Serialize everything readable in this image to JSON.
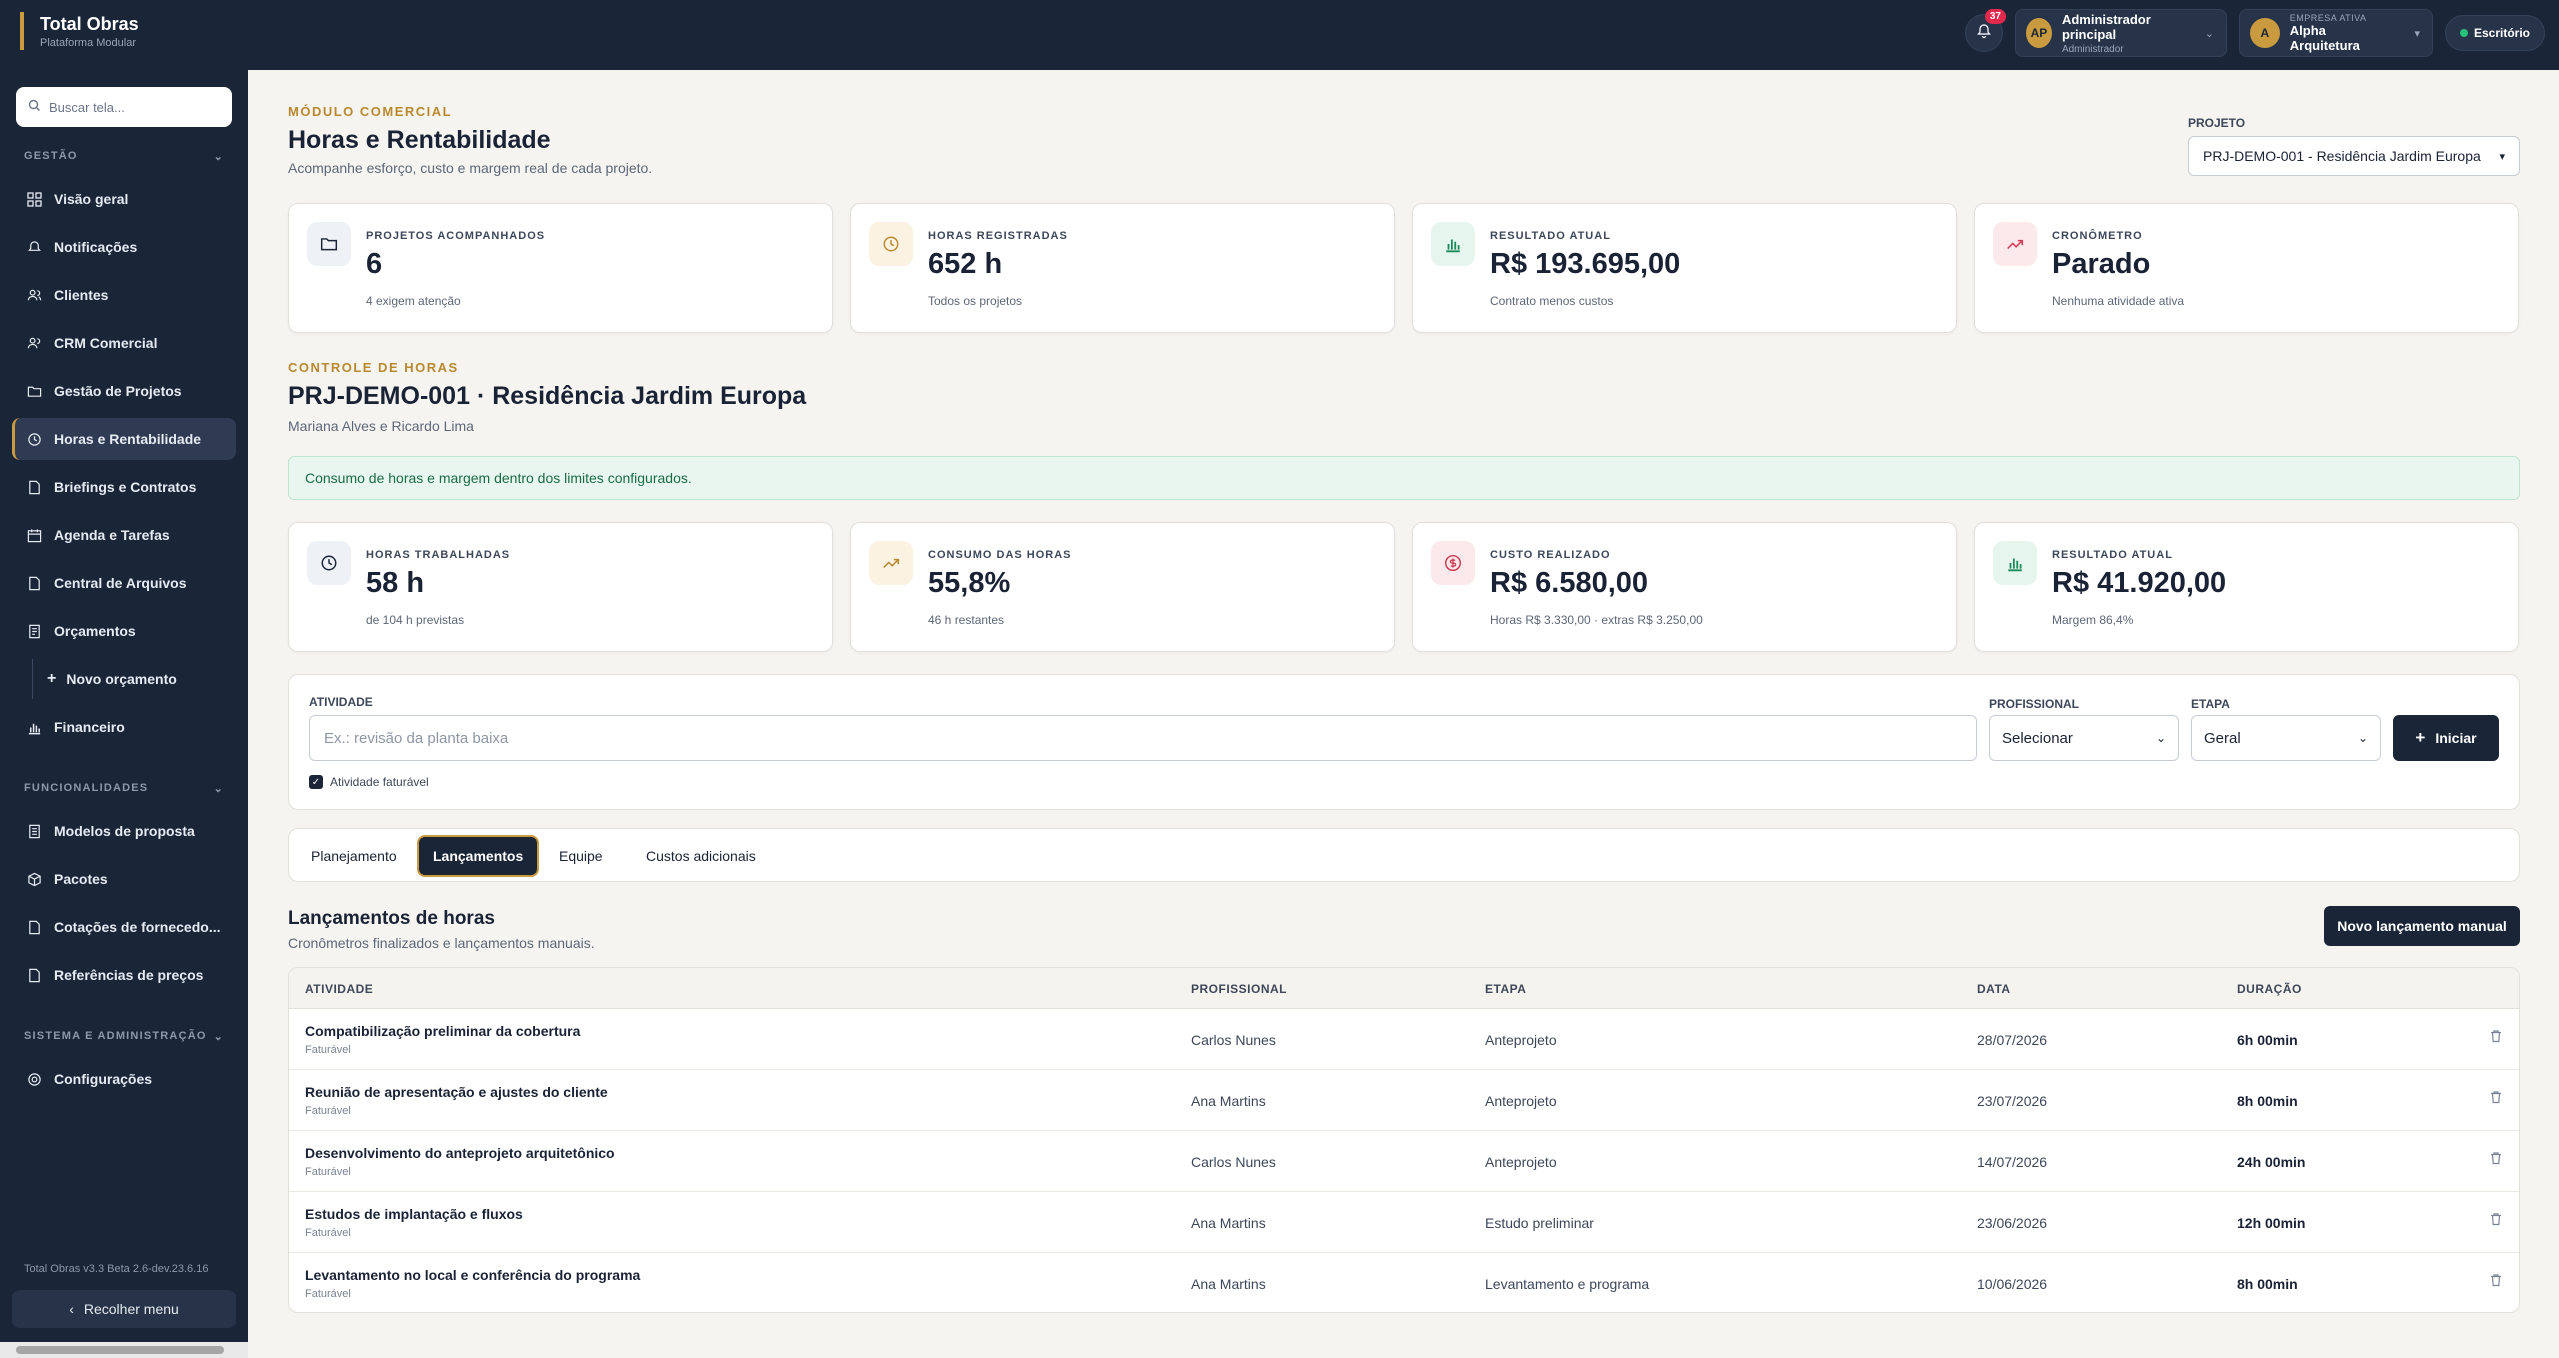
{
  "topbar": {
    "brand_title": "Total Obras",
    "brand_sub": "Plataforma Modular",
    "notification_count": "37",
    "user": {
      "initials": "AP",
      "name": "Administrador principal",
      "role": "Administrador"
    },
    "company": {
      "initial": "A",
      "label": "EMPRESA ATIVA",
      "name": "Alpha Arquitetura"
    },
    "office_label": "Escritório"
  },
  "sidebar": {
    "search_placeholder": "Buscar tela...",
    "sections": {
      "gestao": "GESTÃO",
      "funcionalidades": "FUNCIONALIDADES",
      "sistema": "SISTEMA E ADMINISTRAÇÃO"
    },
    "items": {
      "visao_geral": "Visão geral",
      "notificacoes": "Notificações",
      "clientes": "Clientes",
      "crm": "CRM Comercial",
      "projetos": "Gestão de Projetos",
      "horas": "Horas e Rentabilidade",
      "briefings": "Briefings e Contratos",
      "agenda": "Agenda e Tarefas",
      "arquivos": "Central de Arquivos",
      "orcamentos": "Orçamentos",
      "novo_orcamento": "Novo orçamento",
      "financeiro": "Financeiro",
      "modelos": "Modelos de proposta",
      "pacotes": "Pacotes",
      "cotacoes": "Cotações de fornecedo...",
      "referencias": "Referências de preços",
      "configuracoes": "Configurações"
    },
    "version": "Total Obras v3.3 Beta 2.6-dev.23.6.16",
    "collapse_label": "Recolher menu"
  },
  "header": {
    "eyebrow": "MÓDULO COMERCIAL",
    "title": "Horas e Rentabilidade",
    "subtitle": "Acompanhe esforço, custo e margem real de cada projeto.",
    "project_label": "PROJETO",
    "project_value": "PRJ-DEMO-001 - Residência Jardim Europa"
  },
  "summary_cards": [
    {
      "label": "PROJETOS ACOMPANHADOS",
      "value": "6",
      "note": "4 exigem atenção",
      "icon": "folder-icon",
      "tint": "#eef1f5",
      "color": "#1a2538"
    },
    {
      "label": "HORAS REGISTRADAS",
      "value": "652 h",
      "note": "Todos os projetos",
      "icon": "clock-icon",
      "tint": "#fbf2e2",
      "color": "#b8892f"
    },
    {
      "label": "RESULTADO ATUAL",
      "value": "R$ 193.695,00",
      "note": "Contrato menos custos",
      "icon": "bar-chart-icon",
      "tint": "#e6f5ee",
      "color": "#1a8a5a"
    },
    {
      "label": "CRONÔMETRO",
      "value": "Parado",
      "note": "Nenhuma atividade ativa",
      "icon": "trend-up-icon",
      "tint": "#fbe9ec",
      "color": "#d03b56"
    }
  ],
  "control": {
    "eyebrow": "CONTROLE DE HORAS",
    "title": "PRJ-DEMO-001 · Residência Jardim Europa",
    "subtitle": "Mariana Alves e Ricardo Lima",
    "alert": "Consumo de horas e margem dentro dos limites configurados."
  },
  "project_cards": [
    {
      "label": "HORAS TRABALHADAS",
      "value": "58 h",
      "note": "de 104 h previstas",
      "icon": "clock-icon",
      "tint": "#eef1f5",
      "color": "#1a2538"
    },
    {
      "label": "CONSUMO DAS HORAS",
      "value": "55,8%",
      "note": "46 h restantes",
      "icon": "trend-up-icon",
      "tint": "#fbf2e2",
      "color": "#b8892f"
    },
    {
      "label": "CUSTO REALIZADO",
      "value": "R$ 6.580,00",
      "note": "Horas R$ 3.330,00 · extras R$ 3.250,00",
      "icon": "dollar-icon",
      "tint": "#fbe9ec",
      "color": "#d03b56"
    },
    {
      "label": "RESULTADO ATUAL",
      "value": "R$ 41.920,00",
      "note": "Margem 86,4%",
      "icon": "bar-chart-icon",
      "tint": "#e6f5ee",
      "color": "#1a8a5a"
    }
  ],
  "form": {
    "activity_label": "ATIVIDADE",
    "activity_placeholder": "Ex.: revisão da planta baixa",
    "professional_label": "PROFISSIONAL",
    "professional_value": "Selecionar",
    "stage_label": "ETAPA",
    "stage_value": "Geral",
    "start_label": "Iniciar",
    "billable_label": "Atividade faturável"
  },
  "tabs": [
    "Planejamento",
    "Lançamentos",
    "Equipe",
    "Custos adicionais"
  ],
  "entries": {
    "title": "Lançamentos de horas",
    "subtitle": "Cronômetros finalizados e lançamentos manuais.",
    "new_button": "Novo lançamento manual",
    "columns": [
      "ATIVIDADE",
      "PROFISSIONAL",
      "ETAPA",
      "DATA",
      "DURAÇÃO"
    ],
    "rows": [
      {
        "activity": "Compatibilização preliminar da cobertura",
        "tag": "Faturável",
        "professional": "Carlos Nunes",
        "stage": "Anteprojeto",
        "date": "28/07/2026",
        "duration": "6h 00min"
      },
      {
        "activity": "Reunião de apresentação e ajustes do cliente",
        "tag": "Faturável",
        "professional": "Ana Martins",
        "stage": "Anteprojeto",
        "date": "23/07/2026",
        "duration": "8h 00min"
      },
      {
        "activity": "Desenvolvimento do anteprojeto arquitetônico",
        "tag": "Faturável",
        "professional": "Carlos Nunes",
        "stage": "Anteprojeto",
        "date": "14/07/2026",
        "duration": "24h 00min"
      },
      {
        "activity": "Estudos de implantação e fluxos",
        "tag": "Faturável",
        "professional": "Ana Martins",
        "stage": "Estudo preliminar",
        "date": "23/06/2026",
        "duration": "12h 00min"
      },
      {
        "activity": "Levantamento no local e conferência do programa",
        "tag": "Faturável",
        "professional": "Ana Martins",
        "stage": "Levantamento e programa",
        "date": "10/06/2026",
        "duration": "8h 00min"
      }
    ]
  }
}
